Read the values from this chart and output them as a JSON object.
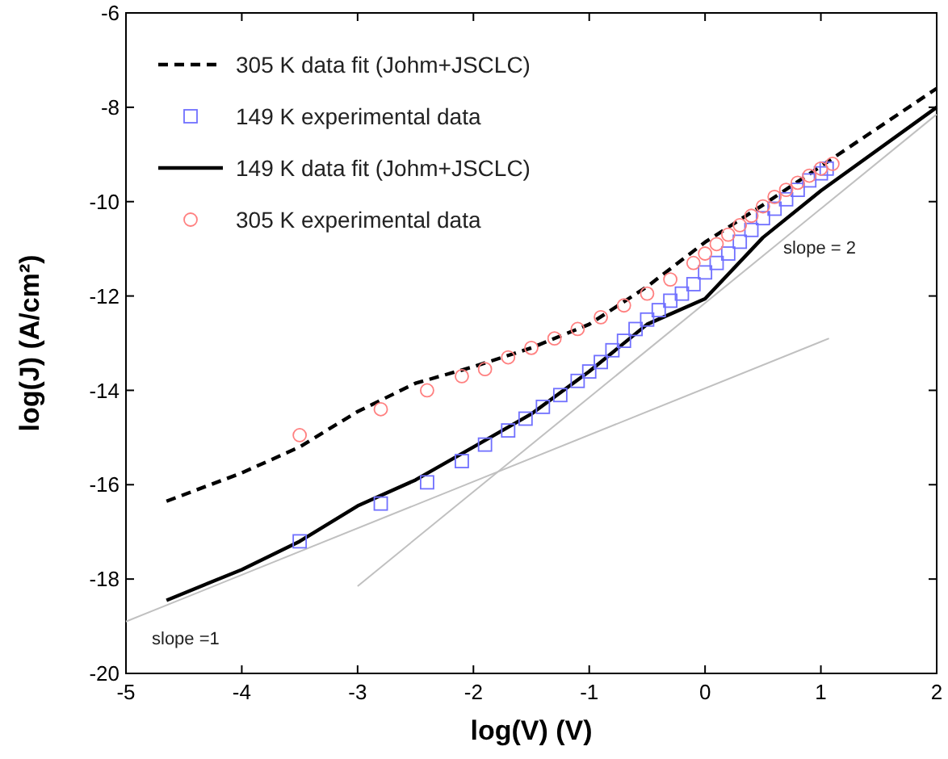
{
  "chart_data": {
    "type": "line",
    "xlabel": "log(V) (V)",
    "ylabel": "log(J) (A/cm²)",
    "xlim": [
      -5,
      2
    ],
    "ylim": [
      -20,
      -6
    ],
    "xticks": [
      -5,
      -4,
      -3,
      -2,
      -1,
      0,
      1,
      2
    ],
    "yticks": [
      -20,
      -18,
      -16,
      -14,
      -12,
      -10,
      -8,
      -6
    ],
    "grid": false,
    "legend": "top left",
    "series": [
      {
        "name": "305 K data fit (Johm+JSCLC)",
        "line_style": "dashed",
        "marker": "none",
        "color": "#000000",
        "x": [
          -4.65,
          -4,
          -3.5,
          -3,
          -2.5,
          -2,
          -1.5,
          -1,
          -0.5,
          0,
          0.5,
          1,
          2
        ],
        "values": [
          -16.35,
          -15.75,
          -15.2,
          -14.45,
          -13.85,
          -13.5,
          -13.1,
          -12.6,
          -11.8,
          -10.86,
          -10.07,
          -9.25,
          -7.6
        ]
      },
      {
        "name": "149 K experimental data",
        "type": "scatter",
        "marker": "square",
        "color": "#7070ff",
        "x": [
          -3.5,
          -2.8,
          -2.4,
          -2.1,
          -1.9,
          -1.7,
          -1.55,
          -1.4,
          -1.25,
          -1.1,
          -1.0,
          -0.9,
          -0.8,
          -0.7,
          -0.6,
          -0.5,
          -0.4,
          -0.3,
          -0.2,
          -0.1,
          0,
          0.1,
          0.2,
          0.3,
          0.4,
          0.5,
          0.6,
          0.7,
          0.8,
          0.9,
          1.0,
          1.05
        ],
        "values": [
          -17.2,
          -16.4,
          -15.95,
          -15.5,
          -15.15,
          -14.85,
          -14.6,
          -14.35,
          -14.1,
          -13.8,
          -13.6,
          -13.4,
          -13.15,
          -12.95,
          -12.7,
          -12.5,
          -12.3,
          -12.1,
          -11.95,
          -11.75,
          -11.5,
          -11.3,
          -11.1,
          -10.85,
          -10.6,
          -10.35,
          -10.15,
          -9.95,
          -9.75,
          -9.55,
          -9.4,
          -9.3
        ]
      },
      {
        "name": "149 K data fit (Johm+JSCLC)",
        "line_style": "solid",
        "marker": "none",
        "color": "#000000",
        "x": [
          -4.65,
          -4,
          -3.5,
          -3,
          -2.5,
          -2,
          -1.5,
          -1,
          -0.5,
          0,
          0.5,
          1,
          2
        ],
        "values": [
          -18.45,
          -17.8,
          -17.2,
          -16.45,
          -15.9,
          -15.2,
          -14.5,
          -13.6,
          -12.6,
          -12.06,
          -10.76,
          -9.77,
          -8.0
        ]
      },
      {
        "name": "305 K experimental data",
        "type": "scatter",
        "marker": "circle",
        "color": "#ff8080",
        "x": [
          -3.5,
          -2.8,
          -2.4,
          -2.1,
          -1.9,
          -1.7,
          -1.5,
          -1.3,
          -1.1,
          -0.9,
          -0.7,
          -0.5,
          -0.3,
          -0.1,
          0,
          0.1,
          0.2,
          0.3,
          0.4,
          0.5,
          0.6,
          0.7,
          0.8,
          0.9,
          1.0,
          1.1
        ],
        "values": [
          -14.95,
          -14.4,
          -14.0,
          -13.7,
          -13.55,
          -13.3,
          -13.1,
          -12.9,
          -12.7,
          -12.45,
          -12.2,
          -11.95,
          -11.65,
          -11.3,
          -11.1,
          -10.9,
          -10.7,
          -10.5,
          -10.3,
          -10.1,
          -9.9,
          -9.75,
          -9.6,
          -9.45,
          -9.3,
          -9.2
        ]
      },
      {
        "line_style": "solid",
        "marker": "none",
        "color": "#c0c0c0",
        "x": [
          -5,
          1.07
        ],
        "values": [
          -18.9,
          -12.9
        ]
      },
      {
        "line_style": "solid",
        "marker": "none",
        "color": "#c0c0c0",
        "x": [
          -3,
          2
        ],
        "values": [
          -18.15,
          -8.15
        ]
      }
    ],
    "annotations": [
      "slope = 2",
      "slope =1"
    ]
  }
}
